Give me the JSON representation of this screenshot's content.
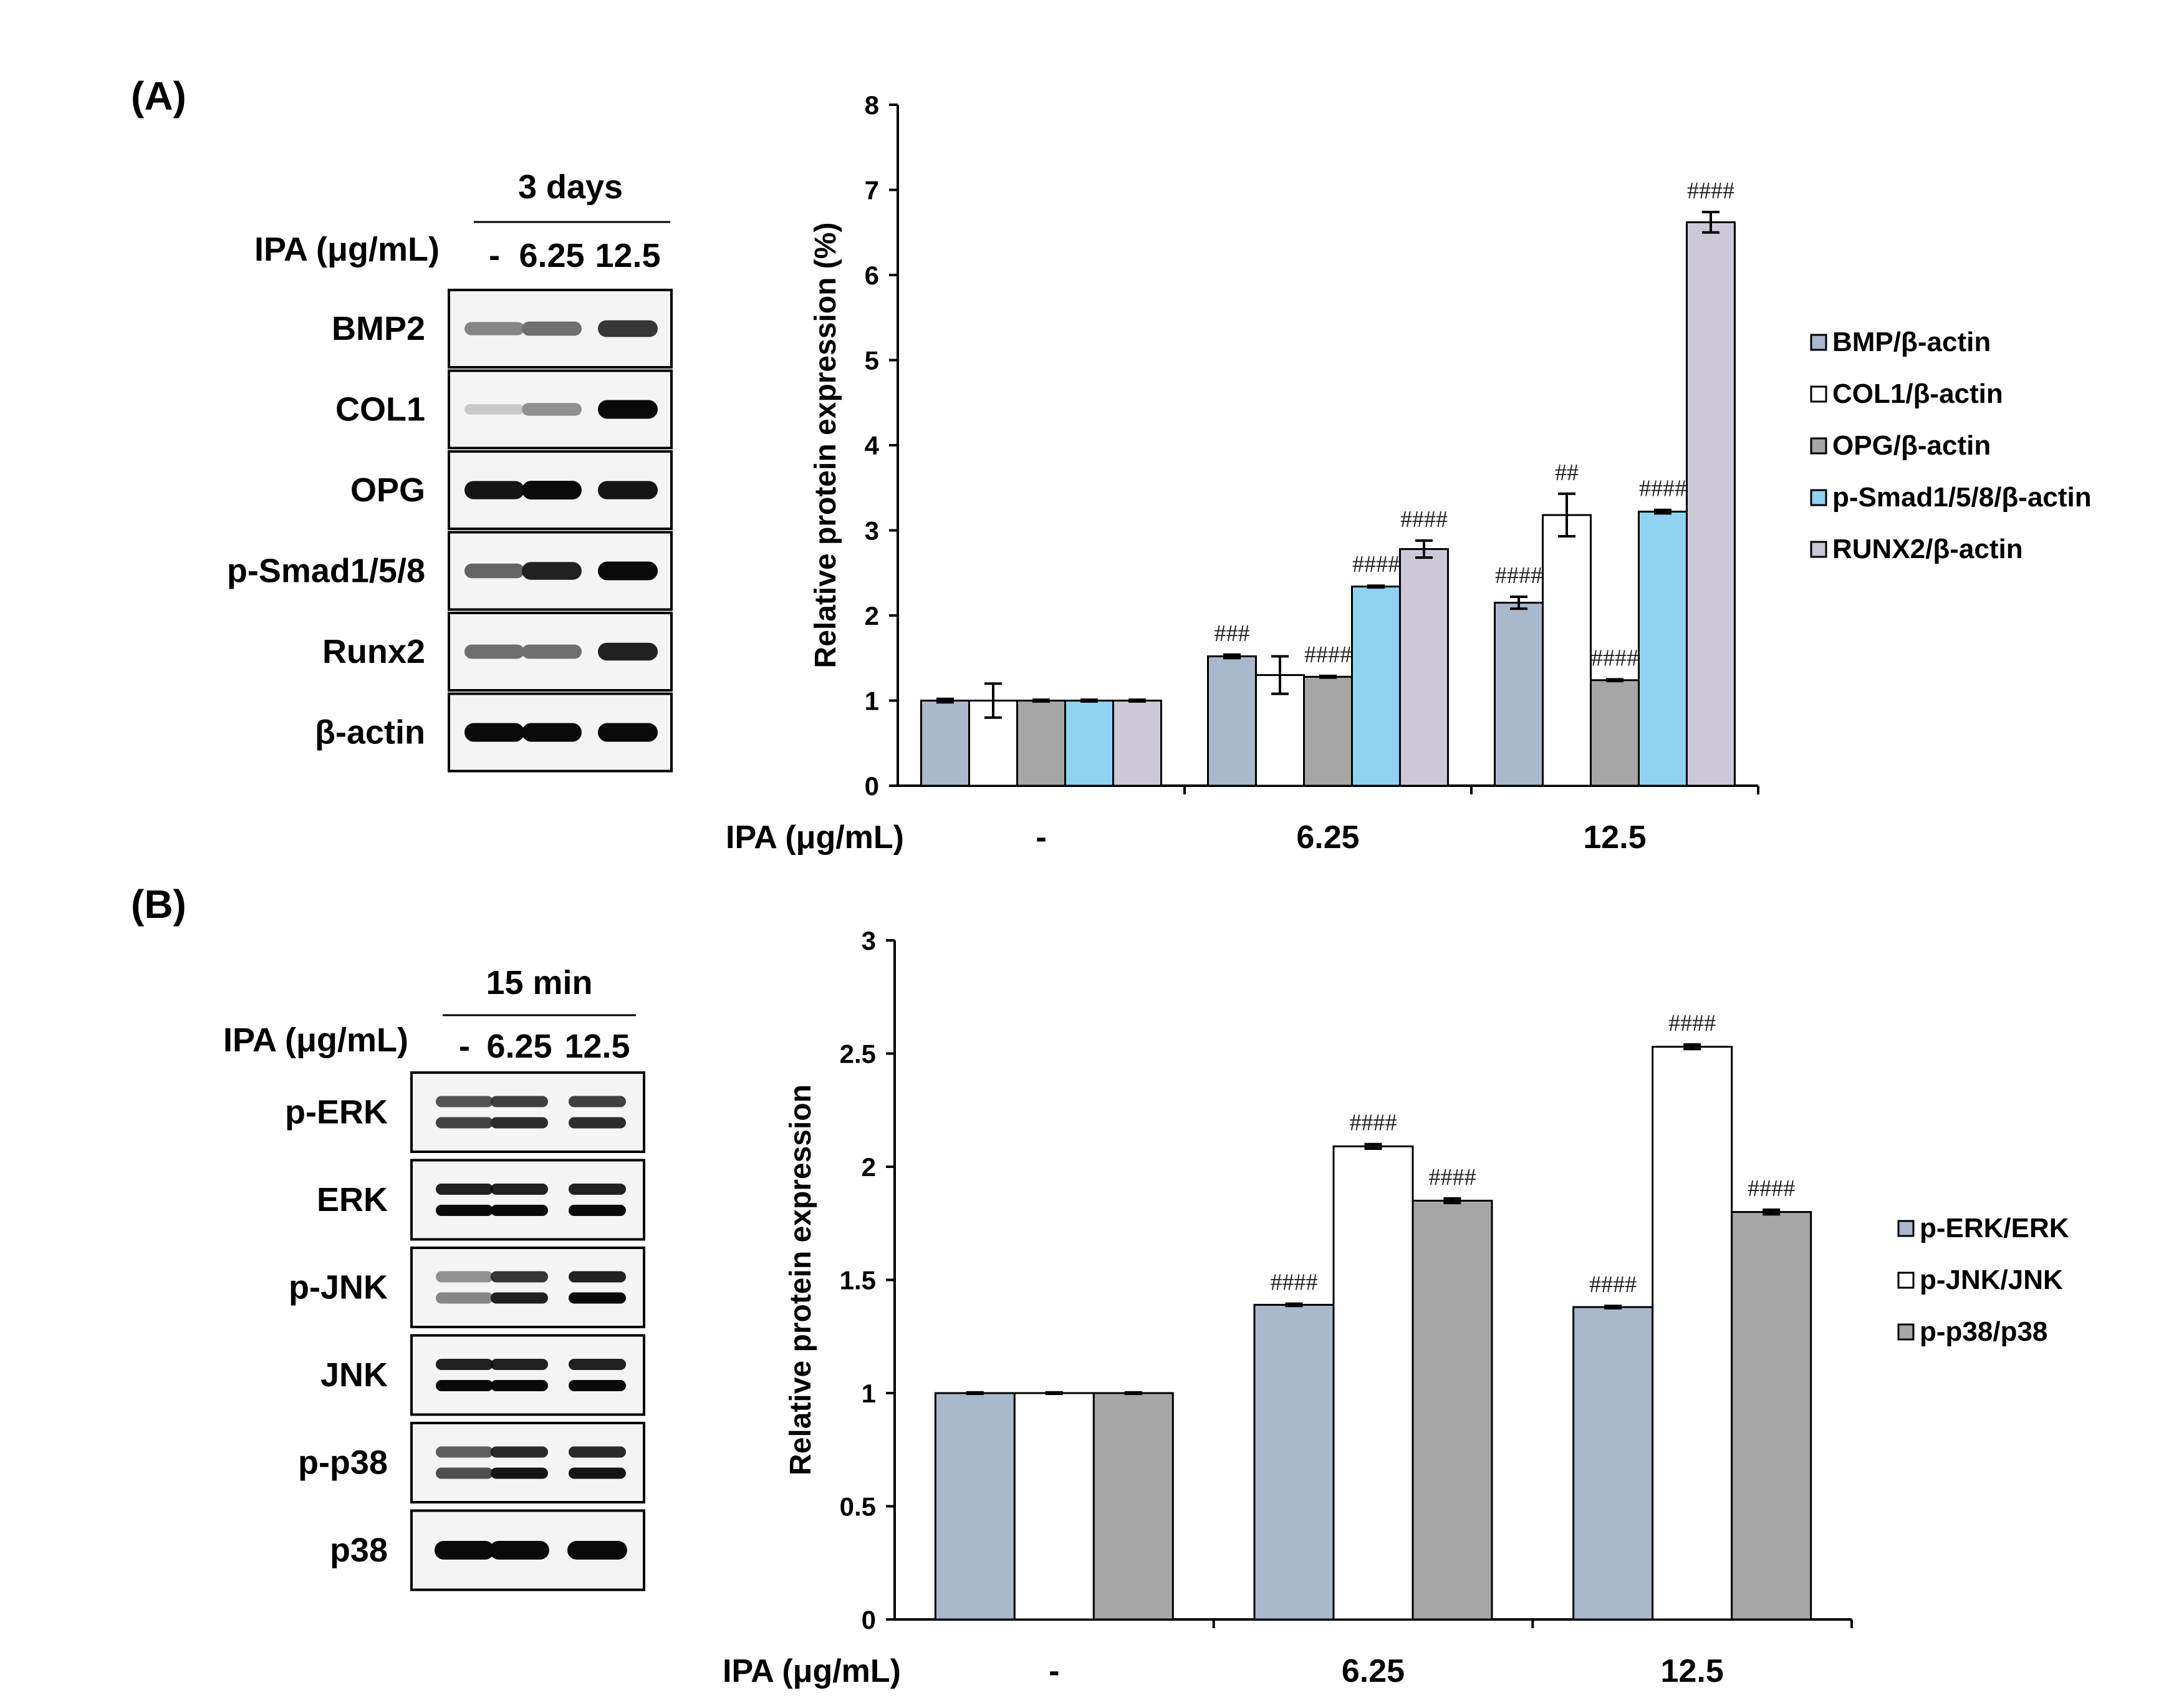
{
  "panels": {
    "A": {
      "label": "(A)",
      "blot": {
        "duration": "3 days",
        "treatment_label": "IPA (μg/mL)",
        "lanes": [
          "-",
          "6.25",
          "12.5"
        ],
        "rows": [
          {
            "name": "BMP2",
            "intensity": [
              0.45,
              0.55,
              0.8
            ],
            "bands": 1
          },
          {
            "name": "COL1",
            "intensity": [
              0.15,
              0.4,
              1.0
            ],
            "bands": 1
          },
          {
            "name": "OPG",
            "intensity": [
              0.95,
              1.0,
              0.95
            ],
            "bands": 1
          },
          {
            "name": "p-Smad1/5/8",
            "intensity": [
              0.6,
              0.9,
              1.0
            ],
            "bands": 1
          },
          {
            "name": "Runx2",
            "intensity": [
              0.55,
              0.55,
              0.9
            ],
            "bands": 1
          },
          {
            "name": "β-actin",
            "intensity": [
              1.0,
              1.0,
              1.0
            ],
            "bands": 1
          }
        ]
      }
    },
    "B": {
      "label": "(B)",
      "blot": {
        "duration": "15 min",
        "treatment_label": "IPA (μg/mL)",
        "lanes": [
          "-",
          "6.25",
          "12.5"
        ],
        "rows": [
          {
            "name": "p-ERK",
            "intensity": [
              0.75,
              0.85,
              0.85
            ],
            "bands": 2
          },
          {
            "name": "ERK",
            "intensity": [
              1.0,
              1.0,
              1.0
            ],
            "bands": 2
          },
          {
            "name": "p-JNK",
            "intensity": [
              0.45,
              0.9,
              1.0
            ],
            "bands": 2
          },
          {
            "name": "JNK",
            "intensity": [
              1.0,
              1.0,
              1.0
            ],
            "bands": 2
          },
          {
            "name": "p-p38",
            "intensity": [
              0.7,
              0.95,
              0.95
            ],
            "bands": 2
          },
          {
            "name": "p38",
            "intensity": [
              1.0,
              1.0,
              1.0
            ],
            "bands": 1
          }
        ]
      }
    }
  },
  "chart_data": [
    {
      "type": "bar",
      "panel": "A",
      "ylabel": "Relative protein expression (%)",
      "xlabel": "IPA (μg/mL)",
      "categories": [
        "-",
        "6.25",
        "12.5"
      ],
      "ylim": [
        0,
        8
      ],
      "yticks": [
        "0",
        "1",
        "2",
        "3",
        "4",
        "5",
        "6",
        "7",
        "8"
      ],
      "legend_position": "right",
      "series": [
        {
          "name": "BMP/β-actin",
          "color": "#a9b8cc",
          "values": [
            1.0,
            1.52,
            2.15
          ],
          "errors": [
            0.02,
            0.02,
            0.07
          ],
          "annotations": [
            "",
            "###",
            "####"
          ]
        },
        {
          "name": "COL1/β-actin",
          "color": "#ffffff",
          "values": [
            1.0,
            1.3,
            3.18
          ],
          "errors": [
            0.2,
            0.22,
            0.25
          ],
          "annotations": [
            "",
            "",
            "##"
          ]
        },
        {
          "name": "OPG/β-actin",
          "color": "#a6a6a6",
          "values": [
            1.0,
            1.28,
            1.24
          ],
          "errors": [
            0.01,
            0.01,
            0.01
          ],
          "annotations": [
            "",
            "####",
            "####"
          ]
        },
        {
          "name": "p-Smad1/5/8/β-actin",
          "color": "#8fd3f0",
          "values": [
            1.0,
            2.34,
            3.22
          ],
          "errors": [
            0.01,
            0.01,
            0.02
          ],
          "annotations": [
            "",
            "####",
            "####"
          ]
        },
        {
          "name": "RUNX2/β-actin",
          "color": "#ccc8d8",
          "values": [
            1.0,
            2.78,
            6.62
          ],
          "errors": [
            0.01,
            0.1,
            0.12
          ],
          "annotations": [
            "",
            "####",
            "####"
          ]
        }
      ]
    },
    {
      "type": "bar",
      "panel": "B",
      "ylabel": "Relative protein expression",
      "xlabel": "IPA (μg/mL)",
      "categories": [
        "-",
        "6.25",
        "12.5"
      ],
      "ylim": [
        0,
        3
      ],
      "yticks": [
        "0",
        "0.5",
        "1",
        "1.5",
        "2",
        "2.5",
        "3"
      ],
      "legend_position": "right",
      "series": [
        {
          "name": "p-ERK/ERK",
          "color": "#a9b8cc",
          "values": [
            1.0,
            1.39,
            1.38
          ],
          "errors": [
            0.003,
            0.005,
            0.005
          ],
          "annotations": [
            "",
            "####",
            "####"
          ]
        },
        {
          "name": "p-JNK/JNK",
          "color": "#ffffff",
          "values": [
            1.0,
            2.09,
            2.53
          ],
          "errors": [
            0.003,
            0.01,
            0.01
          ],
          "annotations": [
            "",
            "####",
            "####"
          ]
        },
        {
          "name": "p-p38/p38",
          "color": "#a6a6a6",
          "values": [
            1.0,
            1.85,
            1.8
          ],
          "errors": [
            0.003,
            0.01,
            0.01
          ],
          "annotations": [
            "",
            "####",
            "####"
          ]
        }
      ]
    }
  ]
}
